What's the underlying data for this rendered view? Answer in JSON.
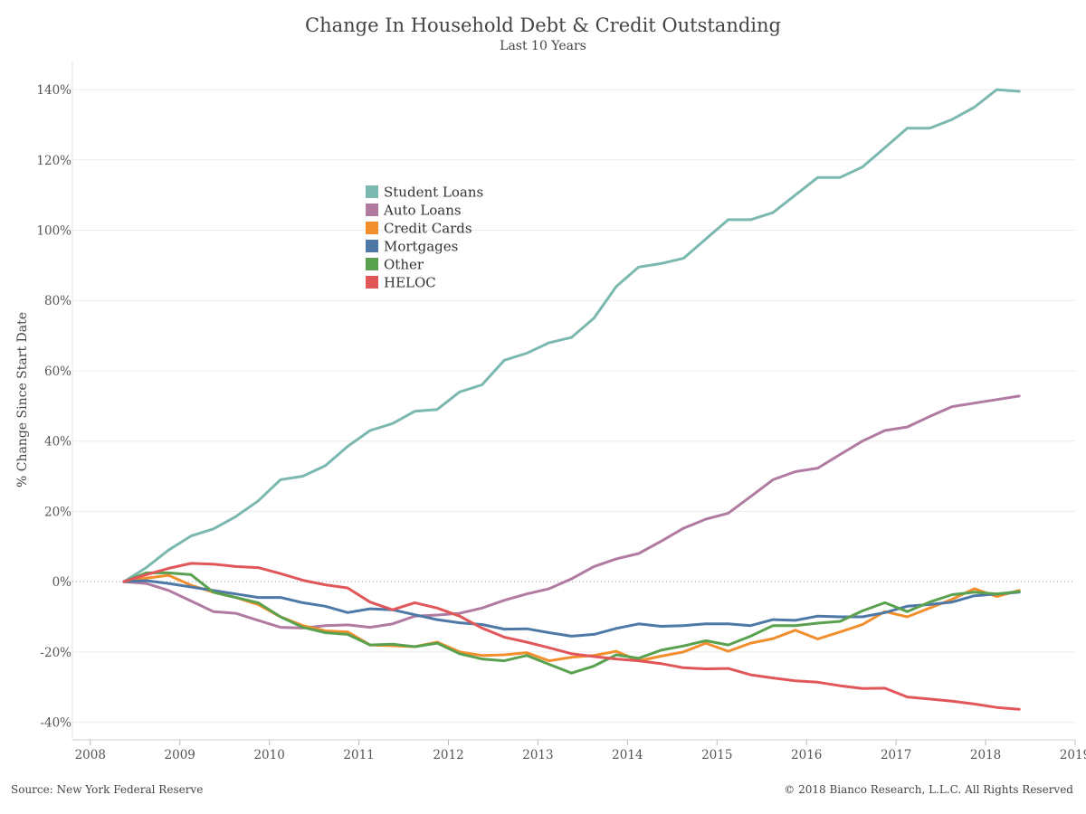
{
  "header": {
    "title": "Change In Household Debt & Credit Outstanding",
    "subtitle": "Last 10 Years"
  },
  "footer": {
    "source": "Source: New York Federal Reserve",
    "copyright": "© 2018 Bianco Research, L.L.C. All Rights Reserved"
  },
  "chart_data": {
    "type": "line",
    "title": "Change In Household Debt & Credit Outstanding",
    "subtitle": "Last 10 Years",
    "ylabel": "% Change Since Start Date",
    "xlabel": "",
    "xlim": [
      2007.8,
      2019.0
    ],
    "ylim": [
      -45,
      148
    ],
    "x_ticks": [
      "2008",
      "2009",
      "2010",
      "2011",
      "2012",
      "2013",
      "2014",
      "2015",
      "2016",
      "2017",
      "2018",
      "2019"
    ],
    "y_ticks": [
      "-40%",
      "-20%",
      "0%",
      "20%",
      "40%",
      "60%",
      "80%",
      "100%",
      "120%",
      "140%"
    ],
    "y_tick_values": [
      -40,
      -20,
      0,
      20,
      40,
      60,
      80,
      100,
      120,
      140
    ],
    "grid": "horizontal",
    "zero_line": "dotted",
    "legend_position": "upper-left-center",
    "x": [
      "2008-Q2",
      "2008-Q3",
      "2008-Q4",
      "2009-Q1",
      "2009-Q2",
      "2009-Q3",
      "2009-Q4",
      "2010-Q1",
      "2010-Q2",
      "2010-Q3",
      "2010-Q4",
      "2011-Q1",
      "2011-Q2",
      "2011-Q3",
      "2011-Q4",
      "2012-Q1",
      "2012-Q2",
      "2012-Q3",
      "2012-Q4",
      "2013-Q1",
      "2013-Q2",
      "2013-Q3",
      "2013-Q4",
      "2014-Q1",
      "2014-Q2",
      "2014-Q3",
      "2014-Q4",
      "2015-Q1",
      "2015-Q2",
      "2015-Q3",
      "2015-Q4",
      "2016-Q1",
      "2016-Q2",
      "2016-Q3",
      "2016-Q4",
      "2017-Q1",
      "2017-Q2",
      "2017-Q3",
      "2017-Q4",
      "2018-Q1",
      "2018-Q2"
    ],
    "series": [
      {
        "name": "Student Loans",
        "color": "#7bb8b0",
        "values": [
          0,
          4,
          9,
          13,
          15,
          18.5,
          23,
          29,
          30,
          33,
          38.5,
          43,
          45,
          48.5,
          49,
          54,
          56,
          63,
          65,
          68,
          69.5,
          75,
          84,
          89.5,
          90.5,
          92,
          97.5,
          103,
          103,
          105,
          110,
          115,
          115,
          118,
          123.5,
          129,
          129,
          131.5,
          135,
          140,
          139.5
        ]
      },
      {
        "name": "Auto Loans",
        "color": "#b07aa1",
        "values": [
          0,
          -0.5,
          -2.5,
          -5.5,
          -8.5,
          -9,
          -11,
          -13,
          -13.2,
          -12.5,
          -12.3,
          -13,
          -12,
          -9.8,
          -9.5,
          -9,
          -7.5,
          -5.3,
          -3.5,
          -2,
          0.8,
          4.3,
          6.5,
          8,
          11.5,
          15.2,
          17.8,
          19.5,
          24.2,
          29,
          31.3,
          32.3,
          36.2,
          40,
          43,
          44,
          47,
          49.8,
          50.8,
          51.8,
          52.8
        ]
      },
      {
        "name": "Credit Cards",
        "color": "#f28e2b",
        "values": [
          0,
          1,
          1.8,
          -1,
          -3,
          -4.5,
          -6.5,
          -10,
          -12.5,
          -14,
          -14.3,
          -18,
          -18.2,
          -18.5,
          -17.2,
          -20,
          -21,
          -20.8,
          -20.2,
          -22.5,
          -21.5,
          -21,
          -19.8,
          -22.5,
          -21.2,
          -20,
          -17.5,
          -19.8,
          -17.5,
          -16.2,
          -13.8,
          -16.3,
          -14.3,
          -12.2,
          -8.5,
          -10,
          -7.5,
          -5,
          -2,
          -4.2,
          -2.5
        ]
      },
      {
        "name": "Mortgages",
        "color": "#4e79a7",
        "values": [
          0,
          0.3,
          -0.5,
          -1.5,
          -2.5,
          -3.5,
          -4.5,
          -4.5,
          -6,
          -7,
          -8.8,
          -7.7,
          -8,
          -9.4,
          -10.8,
          -11.7,
          -12.2,
          -13.5,
          -13.4,
          -14.5,
          -15.5,
          -15,
          -13.3,
          -12,
          -12.7,
          -12.5,
          -12,
          -12,
          -12.5,
          -10.8,
          -11,
          -9.8,
          -10,
          -10,
          -8.8,
          -7,
          -6.5,
          -5.8,
          -4,
          -3.5,
          -3
        ]
      },
      {
        "name": "Other",
        "color": "#59a14f",
        "values": [
          0,
          2.5,
          2.5,
          2,
          -3,
          -4.5,
          -6,
          -10,
          -13,
          -14.5,
          -15,
          -18,
          -17.8,
          -18.5,
          -17.5,
          -20.5,
          -22,
          -22.5,
          -21,
          -23.5,
          -26,
          -24,
          -20.8,
          -21.8,
          -19.5,
          -18.3,
          -16.8,
          -18,
          -15.5,
          -12.5,
          -12.5,
          -11.8,
          -11.3,
          -8.3,
          -6,
          -8.5,
          -5.8,
          -3.7,
          -3,
          -3.5,
          -2.8
        ]
      },
      {
        "name": "HELOC",
        "color": "#e15759",
        "values": [
          0,
          2,
          3.8,
          5.2,
          5,
          4.3,
          4,
          2.3,
          0.4,
          -0.9,
          -1.8,
          -5.8,
          -8,
          -6,
          -7.5,
          -9.8,
          -13.2,
          -15.8,
          -17.2,
          -18.8,
          -20.5,
          -21.3,
          -22,
          -22.5,
          -23.3,
          -24.5,
          -24.8,
          -24.7,
          -26.5,
          -27.4,
          -28.2,
          -28.6,
          -29.6,
          -30.4,
          -30.3,
          -32.8,
          -33.4,
          -34,
          -34.8,
          -35.8,
          -36.3
        ]
      }
    ]
  }
}
